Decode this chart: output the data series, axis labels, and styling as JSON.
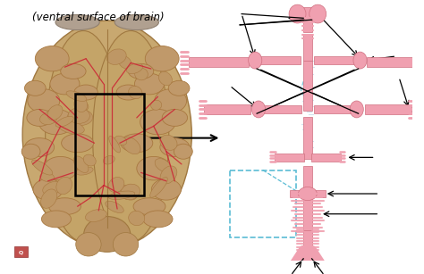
{
  "title": "(ventral surface of brain)",
  "title_fontsize": 8.5,
  "background_color": "#ffffff",
  "artery_color": "#f0a0b0",
  "artery_edge": "#d07080",
  "artery_dark": "#e07888",
  "brain_bg": "#c8a070",
  "brain_gyri": "#b08848",
  "brain_shadow": "#a07040",
  "brain_artery": "#cc2233",
  "dashed_color": "#5bbcd4",
  "arrow_color": "#111111",
  "dc": 0.745,
  "logo_color": "#c0504d"
}
